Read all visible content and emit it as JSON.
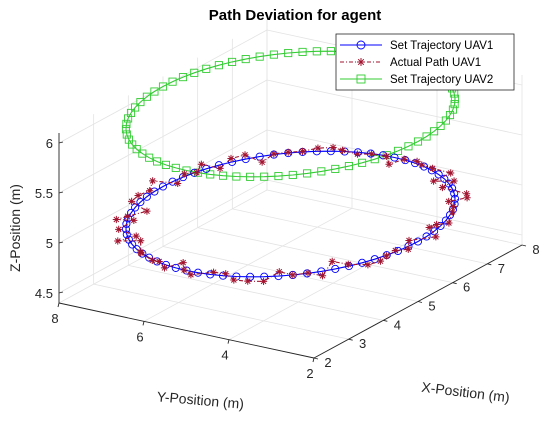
{
  "chart_data": {
    "type": "line3d",
    "title": "Path Deviation for agent",
    "xlabel": "X-Position (m)",
    "ylabel": "Y-Position (m)",
    "zlabel": "Z-Position (m)",
    "xlim": [
      2,
      8
    ],
    "ylim": [
      2,
      8
    ],
    "zlim": [
      4.4,
      6.1
    ],
    "xticks": [
      "2",
      "3",
      "4",
      "5",
      "6",
      "7",
      "8"
    ],
    "yticks": [
      "2",
      "4",
      "6",
      "8"
    ],
    "zticks": [
      "4.5",
      "5",
      "5.5",
      "6"
    ],
    "grid": true,
    "legend_position": "top-right",
    "series": [
      {
        "name": "Set Trajectory UAV1",
        "color": "#0000ff",
        "marker": "circle",
        "line": "solid",
        "shape": "circle",
        "center": [
          5,
          5
        ],
        "radius": 3,
        "z": 5,
        "points": 72
      },
      {
        "name": "Actual Path UAV1",
        "color": "#a2142f",
        "marker": "asterisk",
        "line": "dash-dot",
        "shape": "noisy-circle",
        "center": [
          5,
          5
        ],
        "radius": 3,
        "z": 5,
        "points": 72,
        "deviation_m": 0.25
      },
      {
        "name": "Set Trajectory UAV2",
        "color": "#33cc33",
        "marker": "square",
        "line": "solid",
        "shape": "circle",
        "center": [
          5,
          5
        ],
        "radius": 3,
        "z": 6,
        "points": 72
      }
    ]
  }
}
